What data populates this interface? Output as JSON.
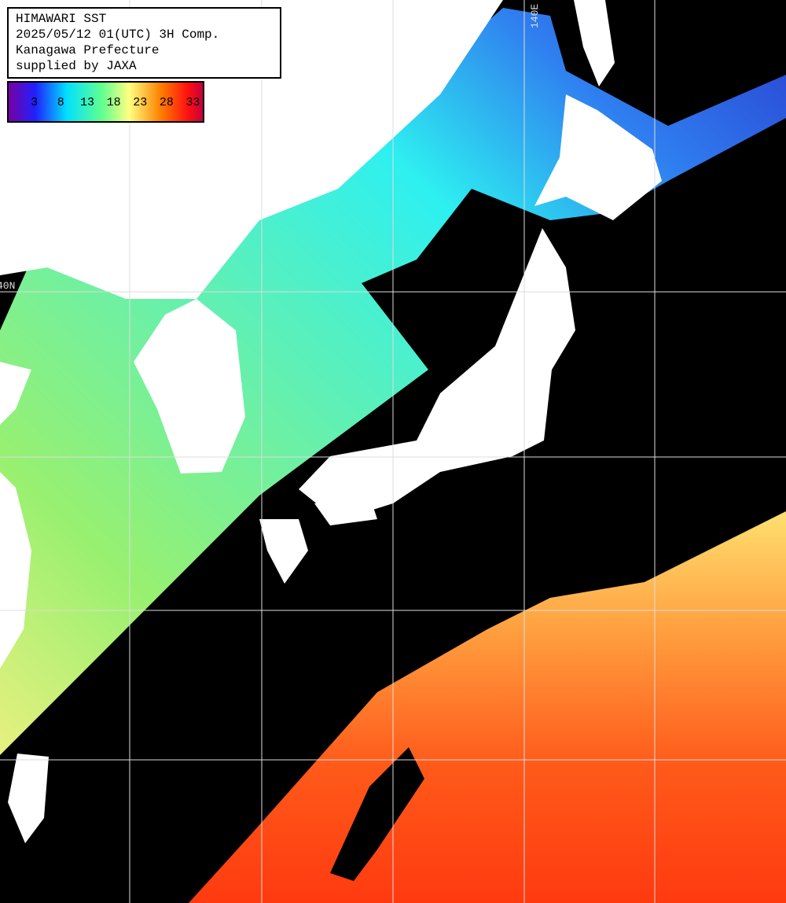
{
  "header": {
    "lines": [
      "HIMAWARI SST",
      "2025/05/12 01(UTC) 3H Comp.",
      "Kanagawa Prefecture",
      "supplied by JAXA"
    ]
  },
  "colorbar": {
    "range": [
      -2,
      35
    ],
    "ticks": [
      3,
      8,
      13,
      18,
      23,
      28,
      33
    ]
  },
  "grid_labels": {
    "longitude": "140E",
    "latitude": "40N"
  }
}
